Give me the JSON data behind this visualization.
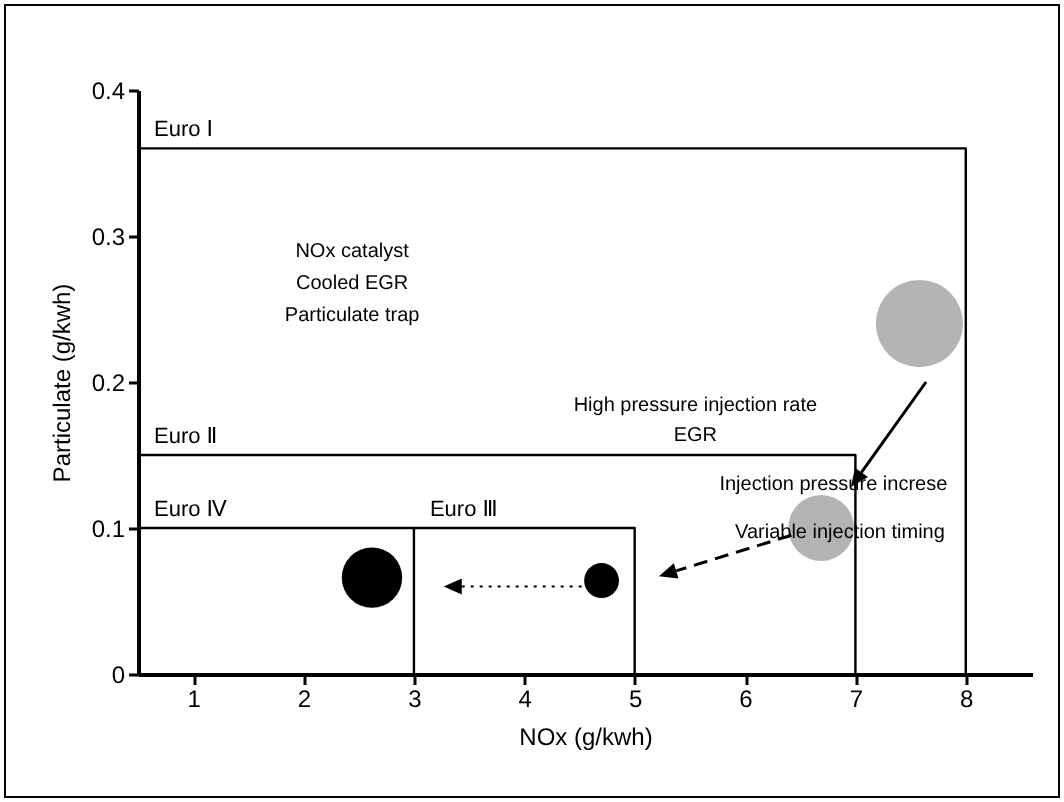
{
  "chart_data": {
    "type": "line",
    "xlabel": "NOx (g/kwh)",
    "ylabel": "Particulate (g/kwh)",
    "xlim": [
      0.5,
      8.6
    ],
    "xticks": [
      1,
      2,
      3,
      4,
      5,
      6,
      7,
      8
    ],
    "ylim": [
      0,
      0.4
    ],
    "yticks": [
      0,
      0.1,
      0.2,
      0.3,
      0.4
    ],
    "grid": false,
    "legend": false,
    "series": [
      {
        "name": "Euro Ⅰ",
        "color": "#000000",
        "x": [
          0.5,
          8,
          8
        ],
        "values": [
          0.36,
          0.36,
          0
        ]
      },
      {
        "name": "Euro Ⅱ",
        "color": "#000000",
        "x": [
          0.5,
          7,
          7
        ],
        "values": [
          0.15,
          0.15,
          0
        ]
      },
      {
        "name": "Euro Ⅲ",
        "color": "#000000",
        "x": [
          3,
          5,
          5
        ],
        "values": [
          0.1,
          0.1,
          0
        ]
      },
      {
        "name": "Euro Ⅳ",
        "color": "#000000",
        "x": [
          0.5,
          3,
          3
        ],
        "values": [
          0.1,
          0.1,
          0
        ]
      },
      {
        "type": "bubble",
        "color": "#b4b4b4",
        "x": [
          7.58,
          6.69
        ],
        "values": [
          0.24,
          0.1
        ],
        "sizes": [
          1,
          0.57
        ]
      },
      {
        "type": "bubble",
        "color": "#000000",
        "x": [
          4.7,
          2.62
        ],
        "values": [
          0.064,
          0.066
        ],
        "sizes": [
          0.16,
          0.48
        ]
      }
    ],
    "annotations": [
      "NOx catalyst",
      "Cooled EGR",
      "Particulate trap",
      "High pressure injection rate",
      "EGR",
      "Injection pressure increse",
      "Variable injection timing"
    ]
  }
}
